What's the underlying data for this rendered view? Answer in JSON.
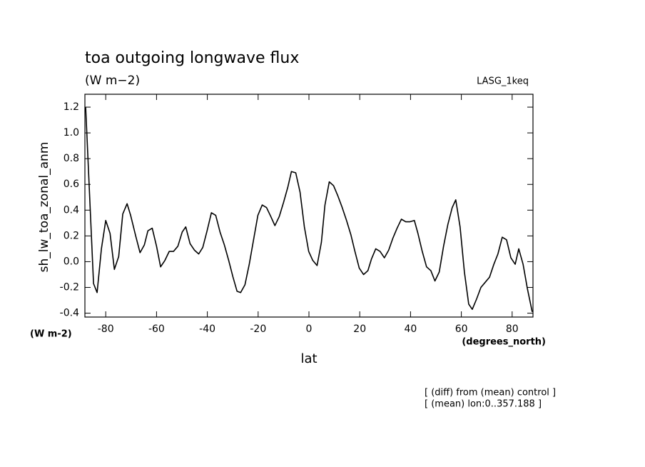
{
  "chart_data": {
    "type": "line",
    "title": "toa outgoing longwave flux",
    "subtitle": "(W m−2)",
    "dataset_label": "LASG_1keq",
    "ylabel": "sh_lw_toa_zonal_anm",
    "y_units": "(W m-2)",
    "xlabel": "lat",
    "x_units": "(degrees_north)",
    "notes": [
      "[ (diff) from (mean) control ]",
      "[ (mean) lon:0..357.188 ]"
    ],
    "xlim": [
      -88.2,
      88.2
    ],
    "ylim": [
      -0.43,
      1.3
    ],
    "xticks": [
      -80,
      -60,
      -40,
      -20,
      0,
      20,
      40,
      60,
      80
    ],
    "yticks": [
      1.2,
      {
        "value": 1.0,
        "label": "1.0"
      },
      0.8,
      0.6,
      0.4,
      0.2,
      {
        "value": 0.0,
        "label": "0.0"
      },
      -0.2,
      -0.4
    ],
    "x": [
      -87.9,
      -84.8,
      -83.4,
      -81.7,
      -80.0,
      -78.3,
      -76.6,
      -74.9,
      -73.3,
      -71.6,
      -70.2,
      -68.2,
      -66.5,
      -64.8,
      -63.4,
      -61.7,
      -60.0,
      -58.4,
      -56.7,
      -55.0,
      -53.3,
      -51.6,
      -49.9,
      -48.5,
      -46.8,
      -45.1,
      -43.4,
      -41.8,
      -40.1,
      -38.4,
      -36.7,
      -35.0,
      -33.3,
      -31.6,
      -29.9,
      -28.3,
      -26.9,
      -25.2,
      -23.5,
      -21.8,
      -20.1,
      -18.4,
      -16.7,
      -15.0,
      -13.4,
      -11.7,
      -10.0,
      -8.3,
      -6.9,
      -5.2,
      -3.5,
      -1.8,
      -0.1,
      1.5,
      3.2,
      4.9,
      6.3,
      8.0,
      9.7,
      11.4,
      13.1,
      14.8,
      16.5,
      18.1,
      19.8,
      21.5,
      23.2,
      24.6,
      26.3,
      28.0,
      29.7,
      31.4,
      33.0,
      34.7,
      36.4,
      38.1,
      39.8,
      41.5,
      42.9,
      44.6,
      46.3,
      48.0,
      49.6,
      51.3,
      53.0,
      54.7,
      56.4,
      57.8,
      59.5,
      61.2,
      62.9,
      64.3,
      66.0,
      67.7,
      69.4,
      71.1,
      72.8,
      74.4,
      76.1,
      77.8,
      79.5,
      81.2,
      82.6,
      84.3,
      86.0,
      87.9
    ],
    "series": [
      {
        "name": "sh_lw_toa_zonal_anm",
        "color": "#000000",
        "values": [
          1.2,
          -0.17,
          -0.24,
          0.1,
          0.32,
          0.22,
          -0.06,
          0.04,
          0.37,
          0.45,
          0.36,
          0.2,
          0.07,
          0.13,
          0.24,
          0.26,
          0.12,
          -0.04,
          0.01,
          0.08,
          0.08,
          0.12,
          0.23,
          0.27,
          0.14,
          0.09,
          0.06,
          0.11,
          0.24,
          0.38,
          0.36,
          0.23,
          0.13,
          0.01,
          -0.12,
          -0.23,
          -0.24,
          -0.18,
          -0.02,
          0.17,
          0.36,
          0.44,
          0.42,
          0.35,
          0.28,
          0.35,
          0.46,
          0.58,
          0.7,
          0.69,
          0.54,
          0.27,
          0.08,
          0.01,
          -0.03,
          0.15,
          0.44,
          0.62,
          0.59,
          0.51,
          0.42,
          0.32,
          0.21,
          0.08,
          -0.05,
          -0.1,
          -0.07,
          0.02,
          0.1,
          0.08,
          0.03,
          0.09,
          0.18,
          0.26,
          0.33,
          0.31,
          0.31,
          0.32,
          0.22,
          0.08,
          -0.04,
          -0.07,
          -0.15,
          -0.08,
          0.12,
          0.29,
          0.42,
          0.48,
          0.27,
          -0.08,
          -0.33,
          -0.37,
          -0.29,
          -0.2,
          -0.16,
          -0.12,
          -0.02,
          0.06,
          0.19,
          0.17,
          0.03,
          -0.02,
          0.1,
          -0.02,
          -0.21,
          -0.39
        ]
      }
    ]
  }
}
